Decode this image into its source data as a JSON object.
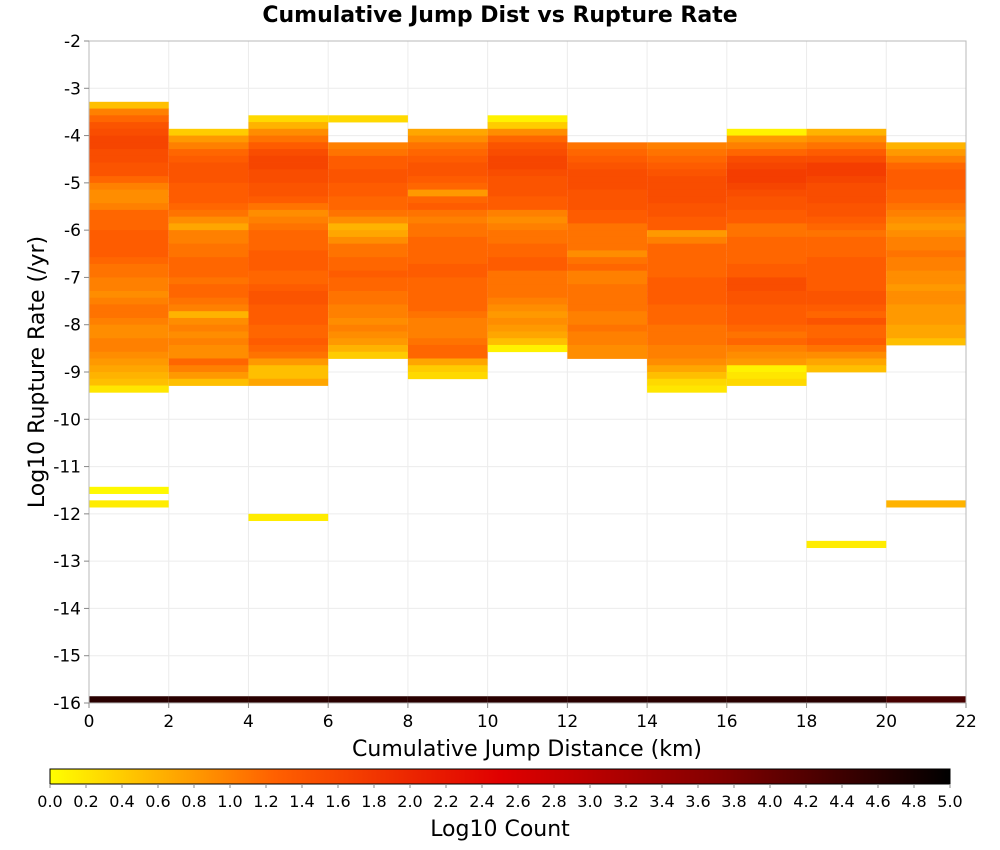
{
  "chart_data": {
    "type": "heatmap",
    "title": "Cumulative Jump Dist vs Rupture Rate",
    "xlabel": "Cumulative Jump Distance (km)",
    "ylabel": "Log10 Rupture Rate (/yr)",
    "xlim": [
      0,
      22
    ],
    "ylim": [
      -16,
      -2
    ],
    "x_ticks": [
      "0",
      "2",
      "4",
      "6",
      "8",
      "10",
      "12",
      "14",
      "16",
      "18",
      "20",
      "22"
    ],
    "y_ticks": [
      "-2",
      "-3",
      "-4",
      "-5",
      "-6",
      "-7",
      "-8",
      "-9",
      "-10",
      "-11",
      "-12",
      "-13",
      "-14",
      "-15",
      "-16"
    ],
    "grid": true,
    "colorbar": {
      "label": "Log10 Count",
      "range": [
        0,
        5
      ],
      "ticks": [
        "0.0",
        "0.2",
        "0.4",
        "0.6",
        "0.8",
        "1.0",
        "1.2",
        "1.4",
        "1.6",
        "1.8",
        "2.0",
        "2.2",
        "2.4",
        "2.6",
        "2.8",
        "3.0",
        "3.2",
        "3.4",
        "3.6",
        "3.8",
        "4.0",
        "4.2",
        "4.4",
        "4.6",
        "4.8",
        "5.0"
      ],
      "colors": [
        "#ffff00",
        "#ff6000",
        "#e00000",
        "#800000",
        "#000000"
      ]
    },
    "bin": {
      "x_width": 2,
      "y_height": 0.142857
    },
    "columns": [
      {
        "x_start": 0,
        "y_bin_starts": [
          -11.857,
          -11.571
        ],
        "counts": [
          0.15,
          0.05
        ]
      },
      {
        "x_start": 0,
        "y_top": -3.286,
        "values": [
          0.5,
          1.0,
          1.2,
          1.4,
          1.5,
          1.6,
          1.6,
          1.5,
          1.5,
          1.4,
          1.4,
          1.2,
          1.0,
          0.9,
          0.9,
          1.0,
          1.2,
          1.2,
          1.2,
          1.3,
          1.3,
          1.3,
          1.3,
          1.2,
          1.1,
          1.1,
          1.0,
          1.0,
          0.9,
          1.0,
          1.1,
          1.1,
          1.0,
          0.9,
          0.9,
          1.0,
          1.0,
          0.9,
          0.8,
          0.7,
          0.6,
          0.5,
          0.2
        ]
      },
      {
        "x_start": 2,
        "y_top": -3.857,
        "values": [
          0.4,
          0.8,
          1.0,
          1.2,
          1.3,
          1.4,
          1.4,
          1.4,
          1.3,
          1.3,
          1.3,
          1.2,
          1.1,
          0.9,
          0.7,
          1.0,
          1.0,
          1.1,
          1.1,
          1.2,
          1.2,
          1.2,
          1.1,
          1.2,
          1.2,
          1.1,
          1.0,
          0.6,
          0.9,
          1.0,
          0.9,
          1.0,
          0.9,
          0.9,
          1.2,
          1.0,
          0.8,
          0.5
        ]
      },
      {
        "x_start": 4,
        "y_top": -3.571,
        "values": [
          0.3,
          0.6,
          0.9,
          1.1,
          1.3,
          1.5,
          1.6,
          1.6,
          1.5,
          1.5,
          1.4,
          1.4,
          1.3,
          1.1,
          0.9,
          1.0,
          1.1,
          1.2,
          1.2,
          1.2,
          1.3,
          1.3,
          1.3,
          1.2,
          1.2,
          1.3,
          1.4,
          1.4,
          1.3,
          1.3,
          1.3,
          1.2,
          1.2,
          1.3,
          1.2,
          1.1,
          0.8,
          0.5,
          0.5,
          0.7
        ]
      },
      {
        "x_start": 4,
        "y_bin_starts": [
          -12.143
        ],
        "counts": [
          0.15
        ]
      },
      {
        "x_start": 6,
        "y_top": -3.571,
        "values": [
          0.3
        ]
      },
      {
        "x_start": 6,
        "y_top": -4.143,
        "values": [
          1.0,
          1.1,
          1.3,
          1.3,
          1.4,
          1.4,
          1.3,
          1.3,
          1.2,
          1.2,
          1.1,
          0.9,
          0.6,
          0.7,
          0.9,
          1.1,
          1.1,
          1.2,
          1.2,
          1.3,
          1.2,
          1.2,
          1.1,
          1.1,
          1.0,
          1.0,
          0.9,
          1.0,
          0.9,
          0.8,
          0.6,
          0.4
        ]
      },
      {
        "x_start": 8,
        "y_top": -3.857,
        "values": [
          0.7,
          0.9,
          1.1,
          1.2,
          1.3,
          1.4,
          1.4,
          1.3,
          1.2,
          0.8,
          1.2,
          1.3,
          1.1,
          1.0,
          1.1,
          1.1,
          1.2,
          1.2,
          1.2,
          1.2,
          1.3,
          1.3,
          1.2,
          1.2,
          1.2,
          1.2,
          1.2,
          1.1,
          1.0,
          1.0,
          1.0,
          1.1,
          1.2,
          1.2,
          0.7,
          0.4,
          0.3
        ]
      },
      {
        "x_start": 10,
        "y_top": -3.571,
        "values": [
          0.1,
          0.4,
          0.9,
          1.2,
          1.4,
          1.5,
          1.6,
          1.6,
          1.5,
          1.4,
          1.4,
          1.4,
          1.3,
          1.3,
          1.0,
          0.9,
          1.0,
          1.1,
          1.1,
          1.2,
          1.2,
          1.3,
          1.3,
          1.1,
          1.1,
          1.1,
          1.1,
          1.0,
          0.9,
          0.8,
          0.9,
          0.8,
          0.7,
          0.5,
          0.1
        ]
      },
      {
        "x_start": 12,
        "y_top": -4.143,
        "values": [
          1.1,
          1.2,
          1.3,
          1.4,
          1.5,
          1.5,
          1.5,
          1.4,
          1.4,
          1.4,
          1.3,
          1.3,
          1.1,
          1.1,
          1.1,
          1.1,
          0.9,
          1.1,
          1.2,
          1.0,
          1.0,
          1.1,
          1.1,
          1.1,
          1.1,
          1.0,
          1.0,
          1.1,
          1.0,
          1.0,
          0.9,
          0.9
        ]
      },
      {
        "x_start": 14,
        "y_top": -4.143,
        "values": [
          1.0,
          1.1,
          1.2,
          1.3,
          1.4,
          1.5,
          1.5,
          1.5,
          1.5,
          1.4,
          1.4,
          1.3,
          1.3,
          0.8,
          1.0,
          1.2,
          1.2,
          1.2,
          1.2,
          1.2,
          1.3,
          1.3,
          1.3,
          1.3,
          1.2,
          1.2,
          1.2,
          1.1,
          1.1,
          1.1,
          1.0,
          1.0,
          0.9,
          0.7,
          0.5,
          0.3,
          0.2
        ]
      },
      {
        "x_start": 16,
        "y_top": -3.857,
        "values": [
          0.1,
          0.8,
          1.0,
          1.2,
          1.5,
          1.6,
          1.7,
          1.7,
          1.6,
          1.5,
          1.4,
          1.4,
          1.3,
          1.3,
          1.1,
          1.1,
          1.2,
          1.2,
          1.2,
          1.2,
          1.3,
          1.3,
          1.5,
          1.5,
          1.4,
          1.4,
          1.3,
          1.3,
          1.3,
          1.2,
          1.1,
          1.2,
          1.0,
          0.9,
          0.8,
          0.1,
          0.2,
          0.3
        ]
      },
      {
        "x_start": 18,
        "y_top": -3.857,
        "values": [
          0.6,
          0.9,
          1.1,
          1.3,
          1.5,
          1.7,
          1.7,
          1.6,
          1.5,
          1.5,
          1.5,
          1.4,
          1.4,
          1.3,
          1.2,
          1.1,
          1.2,
          1.2,
          1.2,
          1.3,
          1.3,
          1.3,
          1.3,
          1.3,
          1.4,
          1.4,
          1.3,
          1.2,
          1.4,
          1.2,
          1.2,
          1.3,
          1.1,
          0.9,
          0.7,
          0.5
        ]
      },
      {
        "x_start": 18,
        "y_bin_starts": [
          -12.714
        ],
        "counts": [
          0.15
        ]
      },
      {
        "x_start": 20,
        "y_top": -4.143,
        "values": [
          0.6,
          0.8,
          1.0,
          1.2,
          1.3,
          1.3,
          1.3,
          1.2,
          1.2,
          1.1,
          1.0,
          0.9,
          0.8,
          0.9,
          1.0,
          1.0,
          1.1,
          1.0,
          1.0,
          0.9,
          0.9,
          0.8,
          0.9,
          0.9,
          0.8,
          0.8,
          0.8,
          0.7,
          0.7,
          0.5
        ]
      },
      {
        "x_start": 20,
        "y_bin_starts": [
          -11.857
        ],
        "counts": [
          0.6
        ]
      }
    ],
    "bottom_row": {
      "y_start": -16.0,
      "y_height": 0.143,
      "values": [
        4.6,
        4.6,
        4.6,
        4.6,
        4.6,
        4.6,
        4.6,
        4.6,
        4.6,
        4.6,
        4.3
      ]
    }
  }
}
